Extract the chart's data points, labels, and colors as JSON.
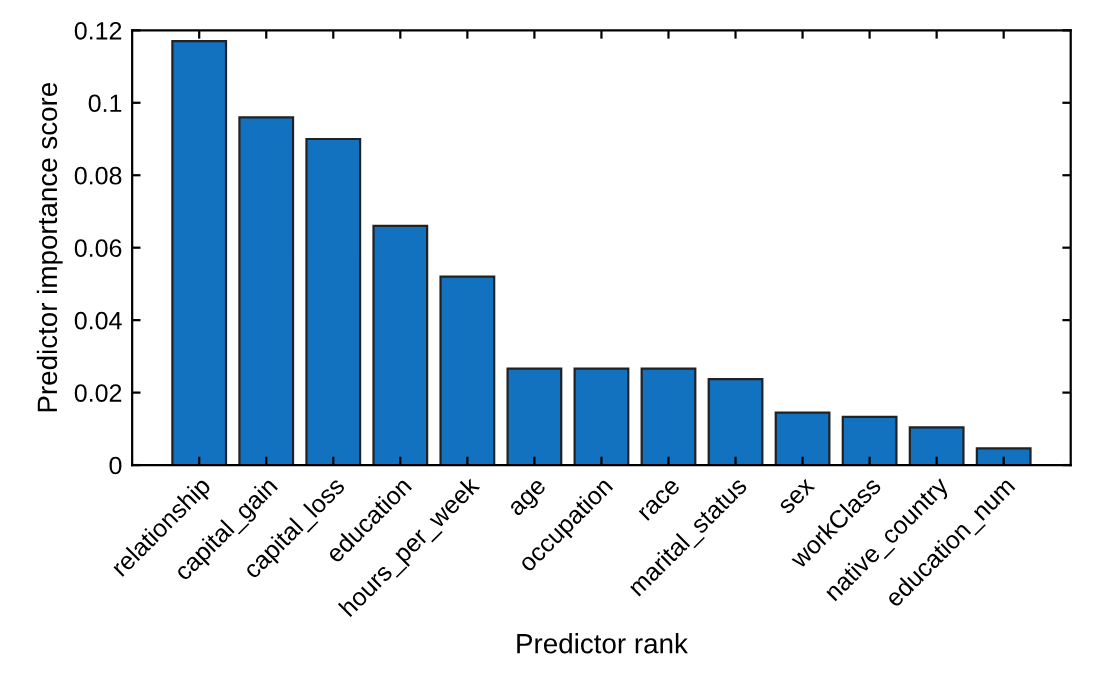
{
  "chart_data": {
    "type": "bar",
    "xlabel": "Predictor rank",
    "ylabel": "Predictor importance score",
    "categories": [
      "relationship",
      "capital_gain",
      "capital_loss",
      "education",
      "hours_per_week",
      "age",
      "occupation",
      "race",
      "marital_status",
      "sex",
      "workClass",
      "native_country",
      "education_num"
    ],
    "values": [
      0.117,
      0.096,
      0.09,
      0.066,
      0.052,
      0.0266,
      0.0266,
      0.0266,
      0.0237,
      0.0145,
      0.0133,
      0.0104,
      0.0046
    ],
    "color": "#1372c0",
    "ylim": [
      0,
      0.12
    ],
    "yticks": [
      0,
      0.02,
      0.04,
      0.06,
      0.08,
      {
        "value": 0.1,
        "label": "0.1"
      },
      0.12
    ],
    "grid": false
  }
}
